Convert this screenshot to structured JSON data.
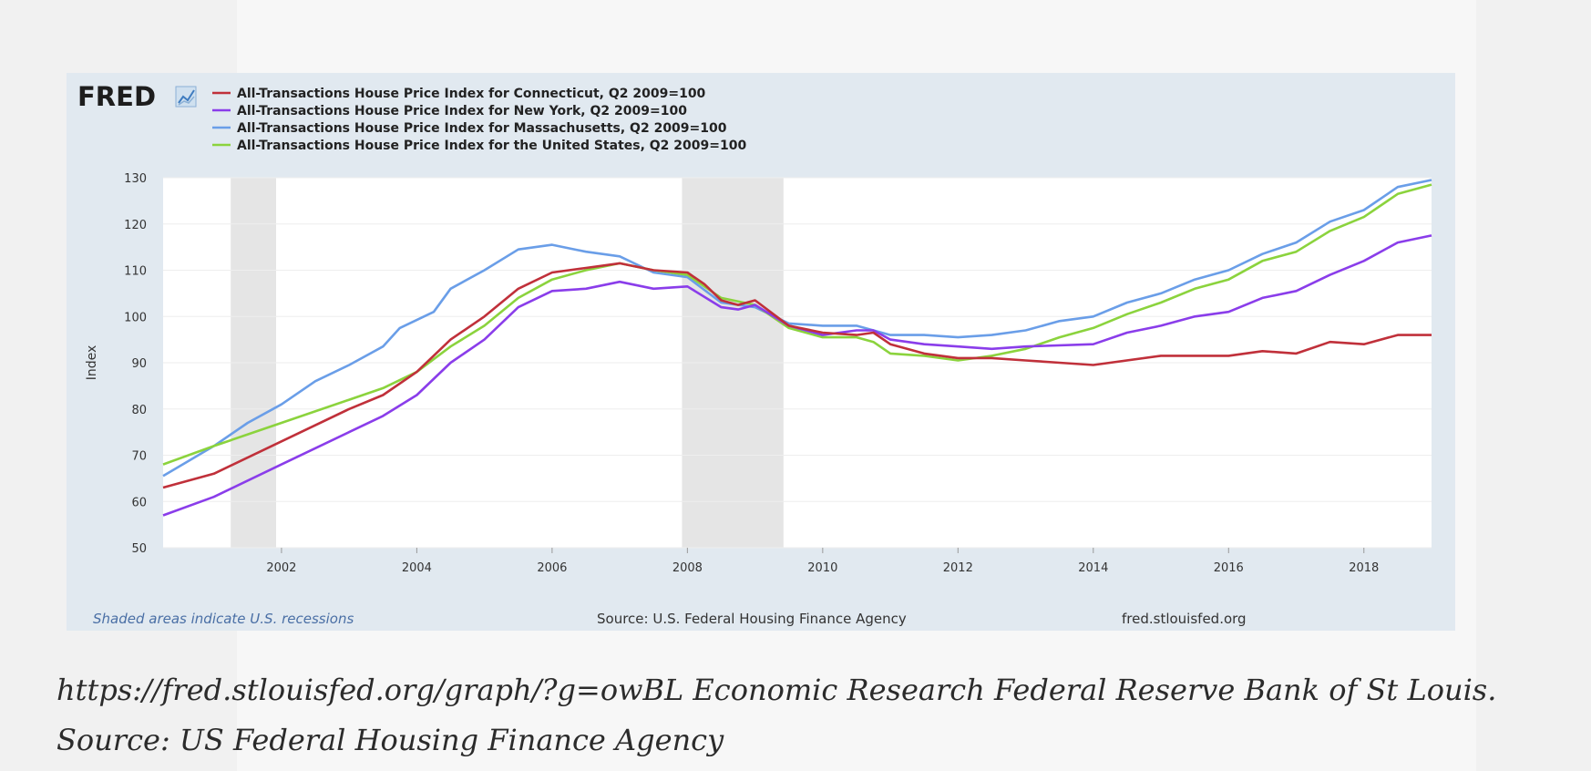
{
  "brand": {
    "logo_text": "FRED"
  },
  "colors": {
    "connecticut": "#c0303a",
    "new_york": "#8a3dea",
    "massachusetts": "#6a9ee8",
    "united_states": "#8bd33d",
    "recession": "#e5e5e5",
    "grid": "#eeeeee",
    "background": "#e1e9f0",
    "footer_link": "#4a6fa5"
  },
  "footer": {
    "recession_note": "Shaded areas indicate U.S. recessions",
    "source": "Source: U.S. Federal Housing Finance Agency",
    "site": "fred.stlouisfed.org"
  },
  "caption": "https://fred.stlouisfed.org/graph/?g=owBL Economic Research Federal Reserve Bank of St Louis. Source: US Federal Housing Finance Agency",
  "chart_data": {
    "type": "line",
    "title": "",
    "xlabel": "",
    "ylabel": "Index",
    "xlim": [
      2000.25,
      2019.0
    ],
    "ylim": [
      50,
      130
    ],
    "yticks": [
      50,
      60,
      70,
      80,
      90,
      100,
      110,
      120,
      130
    ],
    "xticks": [
      "2002",
      "2004",
      "2006",
      "2008",
      "2010",
      "2012",
      "2014",
      "2016",
      "2018"
    ],
    "xtick_values": [
      2002,
      2004,
      2006,
      2008,
      2010,
      2012,
      2014,
      2016,
      2018
    ],
    "grid": true,
    "legend_position": "top-left",
    "recessions": [
      [
        2001.25,
        2001.92
      ],
      [
        2007.92,
        2009.42
      ]
    ],
    "series": [
      {
        "name": "All-Transactions House Price Index for Connecticut, Q2 2009=100",
        "color_key": "connecticut",
        "points": [
          [
            2000.25,
            63
          ],
          [
            2001.0,
            66
          ],
          [
            2002.0,
            73
          ],
          [
            2003.0,
            80
          ],
          [
            2003.5,
            83
          ],
          [
            2004.0,
            88
          ],
          [
            2004.5,
            95
          ],
          [
            2005.0,
            100
          ],
          [
            2005.5,
            106
          ],
          [
            2006.0,
            109.5
          ],
          [
            2006.5,
            110.5
          ],
          [
            2007.0,
            111.5
          ],
          [
            2007.5,
            110
          ],
          [
            2008.0,
            109.5
          ],
          [
            2008.25,
            107
          ],
          [
            2008.5,
            103.5
          ],
          [
            2008.75,
            102.5
          ],
          [
            2009.0,
            103.5
          ],
          [
            2009.5,
            98
          ],
          [
            2010.0,
            96.5
          ],
          [
            2010.5,
            96
          ],
          [
            2010.75,
            96.5
          ],
          [
            2011.0,
            94
          ],
          [
            2011.5,
            92
          ],
          [
            2012.0,
            91
          ],
          [
            2012.5,
            91
          ],
          [
            2013.0,
            90.5
          ],
          [
            2013.5,
            90
          ],
          [
            2014.0,
            89.5
          ],
          [
            2015.0,
            91.5
          ],
          [
            2016.0,
            91.5
          ],
          [
            2016.5,
            92.5
          ],
          [
            2017.0,
            92
          ],
          [
            2017.5,
            94.5
          ],
          [
            2018.0,
            94
          ],
          [
            2018.5,
            96
          ],
          [
            2019.0,
            96
          ]
        ]
      },
      {
        "name": "All-Transactions House Price Index for New York, Q2 2009=100",
        "color_key": "new_york",
        "points": [
          [
            2000.25,
            57
          ],
          [
            2001.0,
            61
          ],
          [
            2002.0,
            68
          ],
          [
            2003.0,
            75
          ],
          [
            2003.5,
            78.5
          ],
          [
            2004.0,
            83
          ],
          [
            2004.5,
            90
          ],
          [
            2005.0,
            95
          ],
          [
            2005.5,
            102
          ],
          [
            2006.0,
            105.5
          ],
          [
            2006.5,
            106
          ],
          [
            2007.0,
            107.5
          ],
          [
            2007.5,
            106
          ],
          [
            2008.0,
            106.5
          ],
          [
            2008.5,
            102
          ],
          [
            2008.75,
            101.5
          ],
          [
            2009.0,
            102.5
          ],
          [
            2009.5,
            98
          ],
          [
            2010.0,
            96
          ],
          [
            2010.5,
            97
          ],
          [
            2010.75,
            97
          ],
          [
            2011.0,
            95
          ],
          [
            2011.5,
            94
          ],
          [
            2012.0,
            93.5
          ],
          [
            2012.5,
            93
          ],
          [
            2013.0,
            93.5
          ],
          [
            2014.0,
            94
          ],
          [
            2014.5,
            96.5
          ],
          [
            2015.0,
            98
          ],
          [
            2015.5,
            100
          ],
          [
            2016.0,
            101
          ],
          [
            2016.5,
            104
          ],
          [
            2017.0,
            105.5
          ],
          [
            2017.5,
            109
          ],
          [
            2018.0,
            112
          ],
          [
            2018.5,
            116
          ],
          [
            2019.0,
            117.5
          ]
        ]
      },
      {
        "name": "All-Transactions House Price Index for Massachusetts, Q2 2009=100",
        "color_key": "massachusetts",
        "points": [
          [
            2000.25,
            65.5
          ],
          [
            2001.0,
            72
          ],
          [
            2001.5,
            77
          ],
          [
            2002.0,
            81
          ],
          [
            2002.5,
            86
          ],
          [
            2003.0,
            89.5
          ],
          [
            2003.5,
            93.5
          ],
          [
            2003.75,
            97.5
          ],
          [
            2004.25,
            101
          ],
          [
            2004.5,
            106
          ],
          [
            2005.0,
            110
          ],
          [
            2005.5,
            114.5
          ],
          [
            2006.0,
            115.5
          ],
          [
            2006.5,
            114
          ],
          [
            2007.0,
            113
          ],
          [
            2007.5,
            109.5
          ],
          [
            2008.0,
            108.5
          ],
          [
            2008.5,
            103
          ],
          [
            2009.0,
            102
          ],
          [
            2009.5,
            98.5
          ],
          [
            2010.0,
            98
          ],
          [
            2010.5,
            98
          ],
          [
            2011.0,
            96
          ],
          [
            2011.5,
            96
          ],
          [
            2012.0,
            95.5
          ],
          [
            2012.5,
            96
          ],
          [
            2013.0,
            97
          ],
          [
            2013.5,
            99
          ],
          [
            2014.0,
            100
          ],
          [
            2014.5,
            103
          ],
          [
            2015.0,
            105
          ],
          [
            2015.5,
            108
          ],
          [
            2016.0,
            110
          ],
          [
            2016.5,
            113.5
          ],
          [
            2017.0,
            116
          ],
          [
            2017.5,
            120.5
          ],
          [
            2018.0,
            123
          ],
          [
            2018.5,
            128
          ],
          [
            2019.0,
            129.5
          ]
        ]
      },
      {
        "name": "All-Transactions House Price Index for the United States, Q2 2009=100",
        "color_key": "united_states",
        "points": [
          [
            2000.25,
            68
          ],
          [
            2001.0,
            72
          ],
          [
            2002.0,
            77
          ],
          [
            2003.0,
            82
          ],
          [
            2003.5,
            84.5
          ],
          [
            2004.0,
            88
          ],
          [
            2004.5,
            93.5
          ],
          [
            2005.0,
            98
          ],
          [
            2005.5,
            104
          ],
          [
            2006.0,
            108
          ],
          [
            2006.5,
            110
          ],
          [
            2007.0,
            111.5
          ],
          [
            2007.5,
            110
          ],
          [
            2008.0,
            109
          ],
          [
            2008.5,
            104
          ],
          [
            2009.0,
            102.5
          ],
          [
            2009.5,
            97.5
          ],
          [
            2010.0,
            95.5
          ],
          [
            2010.5,
            95.5
          ],
          [
            2010.75,
            94.5
          ],
          [
            2011.0,
            92
          ],
          [
            2011.5,
            91.5
          ],
          [
            2012.0,
            90.5
          ],
          [
            2012.5,
            91.5
          ],
          [
            2013.0,
            93
          ],
          [
            2013.5,
            95.5
          ],
          [
            2014.0,
            97.5
          ],
          [
            2014.5,
            100.5
          ],
          [
            2015.0,
            103
          ],
          [
            2015.5,
            106
          ],
          [
            2016.0,
            108
          ],
          [
            2016.5,
            112
          ],
          [
            2017.0,
            114
          ],
          [
            2017.5,
            118.5
          ],
          [
            2018.0,
            121.5
          ],
          [
            2018.5,
            126.5
          ],
          [
            2019.0,
            128.5
          ]
        ]
      }
    ]
  }
}
